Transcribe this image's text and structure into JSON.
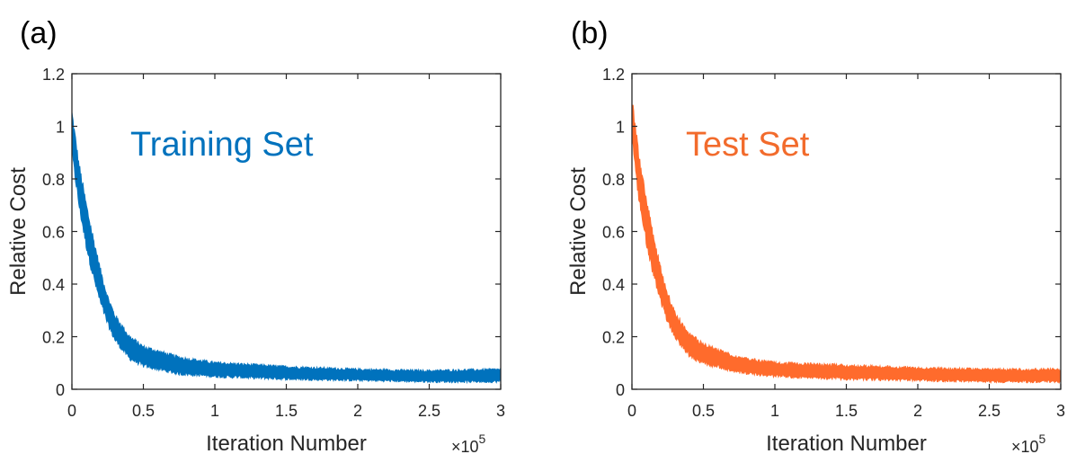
{
  "chart_data": [
    {
      "panel_label": "(a)",
      "type": "line",
      "title": "Training Set",
      "title_color": "#0072BD",
      "series_color": "#0072BD",
      "xlabel": "Iteration Number",
      "ylabel": "Relative Cost",
      "x_multiplier": "×10",
      "x_multiplier_exp": "5",
      "xlim": [
        0,
        3
      ],
      "ylim": [
        0,
        1.2
      ],
      "xticks": [
        "0",
        "0.5",
        "1",
        "1.5",
        "2",
        "2.5",
        "3"
      ],
      "yticks": [
        "0",
        "0.2",
        "0.4",
        "0.6",
        "0.8",
        "1",
        "1.2"
      ],
      "series": [
        {
          "name": "Training Set",
          "x": [
            0,
            0.05,
            0.1,
            0.15,
            0.2,
            0.25,
            0.3,
            0.4,
            0.5,
            0.75,
            1.0,
            1.5,
            2.0,
            2.5,
            3.0
          ],
          "lower": [
            0.9,
            0.7,
            0.55,
            0.43,
            0.33,
            0.25,
            0.19,
            0.12,
            0.09,
            0.06,
            0.05,
            0.04,
            0.035,
            0.03,
            0.03
          ],
          "upper": [
            1.05,
            0.85,
            0.7,
            0.57,
            0.45,
            0.35,
            0.28,
            0.2,
            0.16,
            0.12,
            0.1,
            0.085,
            0.075,
            0.07,
            0.075
          ]
        }
      ]
    },
    {
      "panel_label": "(b)",
      "type": "line",
      "title": "Test Set",
      "title_color": "#F26B2C",
      "series_color": "#FF6B2C",
      "xlabel": "Iteration Number",
      "ylabel": "Relative Cost",
      "x_multiplier": "×10",
      "x_multiplier_exp": "5",
      "xlim": [
        0,
        3
      ],
      "ylim": [
        0,
        1.2
      ],
      "xticks": [
        "0",
        "0.5",
        "1",
        "1.5",
        "2",
        "2.5",
        "3"
      ],
      "yticks": [
        "0",
        "0.2",
        "0.4",
        "0.6",
        "0.8",
        "1",
        "1.2"
      ],
      "series": [
        {
          "name": "Test Set",
          "x": [
            0,
            0.05,
            0.1,
            0.15,
            0.2,
            0.25,
            0.3,
            0.4,
            0.5,
            0.75,
            1.0,
            1.5,
            2.0,
            2.5,
            3.0
          ],
          "lower": [
            0.95,
            0.72,
            0.56,
            0.44,
            0.34,
            0.26,
            0.2,
            0.13,
            0.1,
            0.065,
            0.05,
            0.04,
            0.035,
            0.03,
            0.03
          ],
          "upper": [
            1.1,
            0.88,
            0.72,
            0.58,
            0.46,
            0.36,
            0.29,
            0.21,
            0.17,
            0.12,
            0.1,
            0.09,
            0.08,
            0.075,
            0.075
          ]
        }
      ]
    }
  ]
}
